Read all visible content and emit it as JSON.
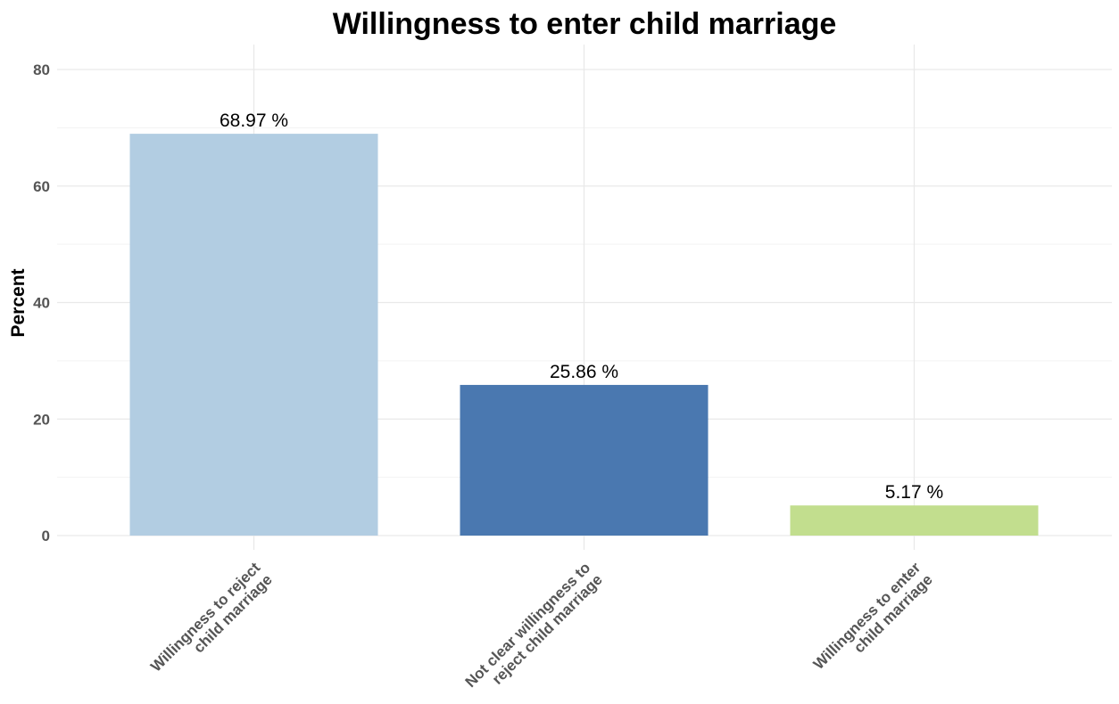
{
  "chart_data": {
    "type": "bar",
    "title": "Willingness to enter child marriage",
    "xlabel": "",
    "ylabel": "Percent",
    "ylim": [
      0,
      80
    ],
    "yticks": [
      "0",
      "20",
      "40",
      "60",
      "80"
    ],
    "grid": true,
    "legend": "none",
    "categories": [
      [
        "Willingness to reject",
        "child marriage"
      ],
      [
        "Not clear willingness to",
        "reject child marriage"
      ],
      [
        "Willingness to enter",
        "child marriage"
      ]
    ],
    "values": [
      68.97,
      25.86,
      5.17
    ],
    "data_labels": [
      "68.97 %",
      "25.86 %",
      "5.17 %"
    ],
    "colors": [
      "#b2cde2",
      "#4a78b0",
      "#c2de8e"
    ]
  }
}
